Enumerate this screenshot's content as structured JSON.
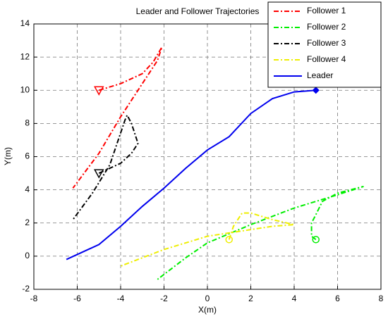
{
  "chart_data": {
    "type": "line",
    "title": "Leader and Follower Trajectories",
    "x_label": "X(m)",
    "y_label": "Y(m)",
    "xlim": [
      -8,
      8
    ],
    "ylim": [
      -2,
      14
    ],
    "xticks": [
      -8,
      -6,
      -4,
      -2,
      0,
      2,
      4,
      6,
      8
    ],
    "yticks": [
      -2,
      0,
      2,
      4,
      6,
      8,
      10,
      12,
      14
    ],
    "grid": true,
    "legend": "northeast",
    "series": [
      {
        "name": "Follower 1",
        "color": "#ff0000",
        "linestyle": "dashdot",
        "start_marker": "triangle-down",
        "x": [
          -5,
          -4,
          -3,
          -2.5,
          -2.1,
          -2.3,
          -3,
          -4,
          -5,
          -6.2
        ],
        "values": [
          10,
          10.4,
          11,
          11.7,
          12.6,
          11.8,
          10.4,
          8.4,
          6.2,
          4.1
        ]
      },
      {
        "name": "Follower 2",
        "color": "#00ee00",
        "linestyle": "dashdot",
        "start_marker": "circle",
        "x": [
          5,
          4.8,
          4.8,
          5,
          5.3,
          6,
          7.2,
          6,
          4,
          2,
          0,
          -1,
          -2.3
        ],
        "values": [
          1,
          1.2,
          2,
          2.5,
          3.3,
          3.8,
          4.2,
          3.7,
          2.9,
          1.9,
          0.8,
          -0.1,
          -1.4
        ]
      },
      {
        "name": "Follower 3",
        "color": "#000000",
        "linestyle": "dashdot",
        "start_marker": "triangle-down",
        "x": [
          -5,
          -4,
          -3.5,
          -3.2,
          -3.5,
          -3.7,
          -3.8,
          -4.5,
          -5.3,
          -6.2
        ],
        "values": [
          5,
          5.6,
          6.2,
          6.8,
          8,
          8.5,
          8.2,
          5.5,
          3.8,
          2.2
        ]
      },
      {
        "name": "Follower 4",
        "color": "#eeee00",
        "linestyle": "dashdot",
        "start_marker": "circle",
        "x": [
          1,
          1.2,
          1.6,
          2,
          3,
          4,
          3,
          2,
          0,
          -2,
          -4
        ],
        "values": [
          1,
          1.8,
          2.6,
          2.6,
          2.2,
          1.9,
          1.8,
          1.6,
          1.2,
          0.4,
          -0.6
        ]
      },
      {
        "name": "Leader",
        "color": "#0000ee",
        "linestyle": "solid",
        "end_marker": "diamond",
        "x": [
          -6.5,
          -5,
          -4,
          -3,
          -2,
          -1,
          0,
          1,
          2,
          3,
          4,
          5
        ],
        "values": [
          -0.2,
          0.7,
          1.8,
          3,
          4.1,
          5.3,
          6.4,
          7.2,
          8.6,
          9.5,
          9.9,
          10
        ]
      }
    ]
  }
}
